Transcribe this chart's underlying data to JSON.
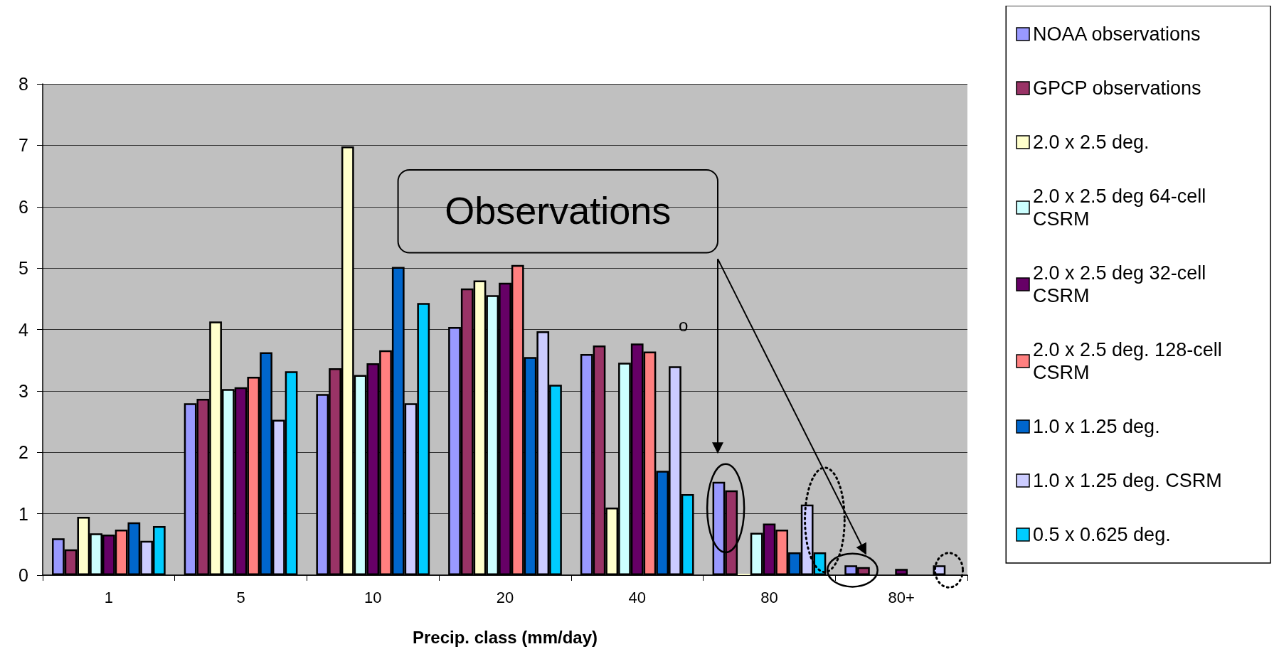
{
  "chart_data": {
    "type": "bar",
    "xlabel": "Precip. class (mm/day)",
    "categories": [
      "1",
      "5",
      "10",
      "20",
      "40",
      "80",
      "80+"
    ],
    "series": [
      {
        "name": "NOAA observations",
        "color": "#9999ff",
        "values": [
          0.6,
          2.8,
          2.95,
          4.04,
          3.6,
          1.52,
          0.16
        ]
      },
      {
        "name": "GPCP observations",
        "color": "#993366",
        "values": [
          0.42,
          2.87,
          3.37,
          4.67,
          3.74,
          1.38,
          0.13
        ]
      },
      {
        "name": "2.0 x 2.5 deg.",
        "color": "#ffffcc",
        "values": [
          0.95,
          4.13,
          6.98,
          4.8,
          1.1,
          0.02,
          0
        ]
      },
      {
        "name": "2.0 x 2.5 deg 64-cell CSRM",
        "color": "#ccffff",
        "values": [
          0.68,
          3.03,
          3.26,
          4.56,
          3.46,
          0.69,
          0
        ]
      },
      {
        "name": "2.0 x 2.5 deg 32-cell CSRM",
        "color": "#660066",
        "values": [
          0.66,
          3.06,
          3.45,
          4.76,
          3.77,
          0.84,
          0.1
        ]
      },
      {
        "name": "2.0 x 2.5 deg. 128-cell CSRM",
        "color": "#ff8080",
        "values": [
          0.74,
          3.23,
          3.66,
          5.05,
          3.64,
          0.74,
          0
        ]
      },
      {
        "name": "1.0 x 1.25 deg.",
        "color": "#0066cc",
        "values": [
          0.86,
          3.63,
          5.02,
          3.55,
          1.7,
          0.37,
          0
        ]
      },
      {
        "name": "1.0 x 1.25 deg. CSRM",
        "color": "#ccccff",
        "values": [
          0.56,
          2.53,
          2.8,
          3.97,
          3.4,
          1.15,
          0.16
        ]
      },
      {
        "name": "0.5 x 0.625 deg.",
        "color": "#00ccff",
        "values": [
          0.8,
          3.32,
          4.43,
          3.1,
          1.32,
          0.37,
          0
        ]
      }
    ],
    "ylim": [
      0,
      8
    ],
    "yticks": [
      0,
      1,
      2,
      3,
      4,
      5,
      6,
      7,
      8
    ],
    "grid": "y",
    "legend": "right",
    "annotations": [
      "Observations",
      "o"
    ]
  }
}
